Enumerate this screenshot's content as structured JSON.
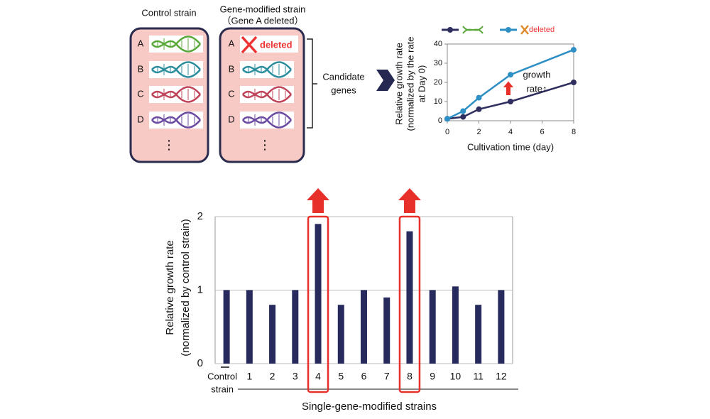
{
  "diagram": {
    "control_title": "Control strain",
    "modified_title": "Gene-modified strain",
    "modified_subtitle": "（Gene A deleted）",
    "genes": [
      "A",
      "B",
      "C",
      "D"
    ],
    "deleted": "deleted",
    "candidate": [
      "Candidate",
      "genes"
    ]
  },
  "chart_data": [
    {
      "type": "line",
      "x": [
        0,
        1,
        2,
        4,
        8
      ],
      "xlim": [
        0,
        8
      ],
      "xticks": [
        0,
        2,
        4,
        6,
        8
      ],
      "ylim": [
        0,
        40
      ],
      "yticks": [
        0,
        10,
        20,
        30,
        40
      ],
      "xlabel": "Cultivation time (day)",
      "ylabel": [
        "Relative growth rate",
        "(normalized by the rate",
        "at Day 0)"
      ],
      "annotation": [
        "growth",
        "rate↑"
      ],
      "series": [
        {
          "color": "#2e2f5e",
          "values": [
            1,
            2,
            6,
            10,
            20
          ]
        },
        {
          "name": "deleted",
          "color": "#2e8fc4",
          "values": [
            1,
            5,
            12,
            24,
            37
          ]
        }
      ]
    },
    {
      "type": "bar",
      "categories": [
        [
          "Control",
          "strain"
        ],
        "1",
        "2",
        "3",
        "4",
        "5",
        "6",
        "7",
        "8",
        "9",
        "10",
        "11",
        "12"
      ],
      "values": [
        1,
        1,
        0.8,
        1,
        1.9,
        0.8,
        1,
        0.9,
        1.8,
        1,
        1.05,
        0.8,
        1
      ],
      "color": "#262a5c",
      "ylim": [
        0,
        2
      ],
      "yticks": [
        0,
        1,
        2
      ],
      "grid": true,
      "xlabel": "Single-gene-modified strains",
      "ylabel": [
        "Relative growth rate",
        "(normalized by control strain)"
      ],
      "highlight_indices": [
        4,
        8
      ],
      "highlight_color": "#e8302a"
    }
  ]
}
